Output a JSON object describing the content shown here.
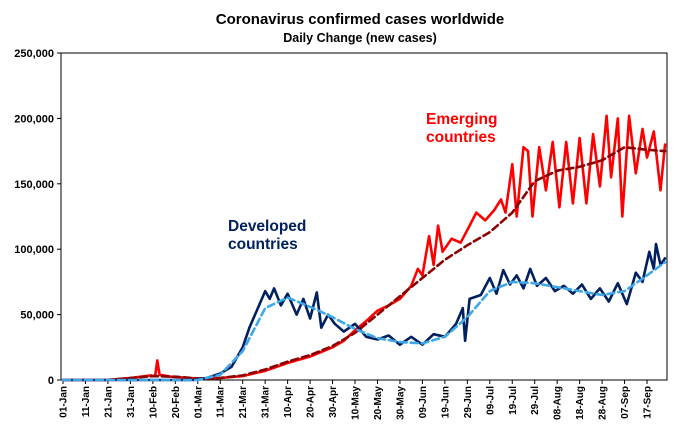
{
  "chart_data": {
    "type": "line",
    "title": "Coronavirus confirmed cases worldwide",
    "subtitle": "Daily Change (new cases)",
    "xlabel": "",
    "ylabel": "",
    "x_range": [
      "01-Jan",
      "25-Sep"
    ],
    "ylim": [
      0,
      250000
    ],
    "yticks": [
      0,
      50000,
      100000,
      150000,
      200000,
      250000
    ],
    "ytick_labels": [
      "0",
      "50,000",
      "100,000",
      "150,000",
      "200,000",
      "250,000"
    ],
    "x_tick_labels": [
      "01-Jan",
      "11-Jan",
      "21-Jan",
      "31-Jan",
      "10-Feb",
      "20-Feb",
      "01-Mar",
      "11-Mar",
      "21-Mar",
      "31-Mar",
      "10-Apr",
      "20-Apr",
      "30-Apr",
      "10-May",
      "20-May",
      "30-May",
      "09-Jun",
      "19-Jun",
      "29-Jun",
      "09-Jul",
      "19-Jul",
      "29-Jul",
      "08-Aug",
      "18-Aug",
      "28-Aug",
      "07-Sep",
      "17-Sep"
    ],
    "grid": false,
    "legend": "none",
    "annotations": [
      {
        "text_lines": [
          "Emerging",
          "countries"
        ],
        "color": "#ff0000"
      },
      {
        "text_lines": [
          "Developed",
          "countries"
        ],
        "color": "#002060"
      }
    ],
    "series": [
      {
        "color": "#ff0000",
        "style": "solid",
        "points": [
          [
            "01-Jan",
            0
          ],
          [
            "20-Jan",
            0
          ],
          [
            "31-Jan",
            1500
          ],
          [
            "09-Feb",
            3500
          ],
          [
            "11-Feb",
            3000
          ],
          [
            "12-Feb",
            15000
          ],
          [
            "13-Feb",
            4000
          ],
          [
            "18-Feb",
            2500
          ],
          [
            "01-Mar",
            1000
          ],
          [
            "11-Mar",
            1500
          ],
          [
            "21-Mar",
            3000
          ],
          [
            "31-Mar",
            7000
          ],
          [
            "10-Apr",
            13000
          ],
          [
            "20-Apr",
            18000
          ],
          [
            "30-Apr",
            25000
          ],
          [
            "05-May",
            30000
          ],
          [
            "10-May",
            38000
          ],
          [
            "15-May",
            45000
          ],
          [
            "20-May",
            53000
          ],
          [
            "25-May",
            57000
          ],
          [
            "30-May",
            62000
          ],
          [
            "04-Jun",
            72000
          ],
          [
            "07-Jun",
            85000
          ],
          [
            "09-Jun",
            80000
          ],
          [
            "12-Jun",
            110000
          ],
          [
            "14-Jun",
            88000
          ],
          [
            "16-Jun",
            118000
          ],
          [
            "18-Jun",
            98000
          ],
          [
            "22-Jun",
            108000
          ],
          [
            "26-Jun",
            105000
          ],
          [
            "30-Jun",
            118000
          ],
          [
            "03-Jul",
            128000
          ],
          [
            "07-Jul",
            122000
          ],
          [
            "11-Jul",
            130000
          ],
          [
            "14-Jul",
            138000
          ],
          [
            "16-Jul",
            128000
          ],
          [
            "19-Jul",
            165000
          ],
          [
            "21-Jul",
            125000
          ],
          [
            "24-Jul",
            178000
          ],
          [
            "26-Jul",
            175000
          ],
          [
            "28-Jul",
            125000
          ],
          [
            "31-Jul",
            178000
          ],
          [
            "03-Aug",
            145000
          ],
          [
            "06-Aug",
            182000
          ],
          [
            "09-Aug",
            132000
          ],
          [
            "12-Aug",
            182000
          ],
          [
            "15-Aug",
            135000
          ],
          [
            "18-Aug",
            185000
          ],
          [
            "21-Aug",
            135000
          ],
          [
            "24-Aug",
            188000
          ],
          [
            "27-Aug",
            148000
          ],
          [
            "30-Aug",
            202000
          ],
          [
            "01-Sep",
            155000
          ],
          [
            "04-Sep",
            200000
          ],
          [
            "06-Sep",
            125000
          ],
          [
            "09-Sep",
            202000
          ],
          [
            "12-Sep",
            158000
          ],
          [
            "15-Sep",
            192000
          ],
          [
            "17-Sep",
            170000
          ],
          [
            "20-Sep",
            190000
          ],
          [
            "23-Sep",
            145000
          ],
          [
            "25-Sep",
            180000
          ]
        ]
      },
      {
        "color": "#8b0000",
        "style": "dashed",
        "points": [
          [
            "01-Jan",
            0
          ],
          [
            "21-Jan",
            0
          ],
          [
            "31-Jan",
            1500
          ],
          [
            "10-Feb",
            3000
          ],
          [
            "20-Feb",
            2500
          ],
          [
            "01-Mar",
            1200
          ],
          [
            "11-Mar",
            1500
          ],
          [
            "21-Mar",
            3500
          ],
          [
            "31-Mar",
            8000
          ],
          [
            "10-Apr",
            14000
          ],
          [
            "20-Apr",
            19000
          ],
          [
            "30-Apr",
            26000
          ],
          [
            "10-May",
            36000
          ],
          [
            "20-May",
            50000
          ],
          [
            "30-May",
            64000
          ],
          [
            "09-Jun",
            78000
          ],
          [
            "19-Jun",
            92000
          ],
          [
            "29-Jun",
            103000
          ],
          [
            "09-Jul",
            113000
          ],
          [
            "19-Jul",
            128000
          ],
          [
            "29-Jul",
            152000
          ],
          [
            "08-Aug",
            160000
          ],
          [
            "18-Aug",
            163000
          ],
          [
            "28-Aug",
            168000
          ],
          [
            "07-Sep",
            178000
          ],
          [
            "17-Sep",
            176000
          ],
          [
            "25-Sep",
            175000
          ]
        ]
      },
      {
        "color": "#002060",
        "style": "solid",
        "points": [
          [
            "01-Jan",
            0
          ],
          [
            "28-Feb",
            0
          ],
          [
            "05-Mar",
            1500
          ],
          [
            "11-Mar",
            5000
          ],
          [
            "16-Mar",
            10000
          ],
          [
            "21-Mar",
            25000
          ],
          [
            "24-Mar",
            40000
          ],
          [
            "27-Mar",
            52000
          ],
          [
            "31-Mar",
            68000
          ],
          [
            "02-Apr",
            62000
          ],
          [
            "04-Apr",
            70000
          ],
          [
            "07-Apr",
            57000
          ],
          [
            "10-Apr",
            66000
          ],
          [
            "14-Apr",
            50000
          ],
          [
            "17-Apr",
            62000
          ],
          [
            "20-Apr",
            47000
          ],
          [
            "23-Apr",
            67000
          ],
          [
            "25-Apr",
            40000
          ],
          [
            "28-Apr",
            50000
          ],
          [
            "01-May",
            43000
          ],
          [
            "05-May",
            37000
          ],
          [
            "10-May",
            43000
          ],
          [
            "15-May",
            33000
          ],
          [
            "20-May",
            31000
          ],
          [
            "25-May",
            34000
          ],
          [
            "30-May",
            27000
          ],
          [
            "04-Jun",
            33000
          ],
          [
            "09-Jun",
            27000
          ],
          [
            "14-Jun",
            35000
          ],
          [
            "19-Jun",
            33000
          ],
          [
            "24-Jun",
            43000
          ],
          [
            "27-Jun",
            55000
          ],
          [
            "28-Jun",
            30000
          ],
          [
            "30-Jun",
            62000
          ],
          [
            "05-Jul",
            65000
          ],
          [
            "09-Jul",
            78000
          ],
          [
            "12-Jul",
            66000
          ],
          [
            "15-Jul",
            84000
          ],
          [
            "18-Jul",
            73000
          ],
          [
            "21-Jul",
            80000
          ],
          [
            "24-Jul",
            70000
          ],
          [
            "27-Jul",
            85000
          ],
          [
            "30-Jul",
            72000
          ],
          [
            "03-Aug",
            78000
          ],
          [
            "07-Aug",
            68000
          ],
          [
            "11-Aug",
            72000
          ],
          [
            "15-Aug",
            66000
          ],
          [
            "19-Aug",
            73000
          ],
          [
            "23-Aug",
            62000
          ],
          [
            "27-Aug",
            70000
          ],
          [
            "31-Aug",
            60000
          ],
          [
            "04-Sep",
            74000
          ],
          [
            "08-Sep",
            58000
          ],
          [
            "12-Sep",
            82000
          ],
          [
            "15-Sep",
            75000
          ],
          [
            "18-Sep",
            98000
          ],
          [
            "20-Sep",
            85000
          ],
          [
            "21-Sep",
            104000
          ],
          [
            "23-Sep",
            88000
          ],
          [
            "25-Sep",
            93000
          ]
        ]
      },
      {
        "color": "#3fa8e8",
        "style": "dashed",
        "points": [
          [
            "01-Jan",
            0
          ],
          [
            "01-Mar",
            0
          ],
          [
            "11-Mar",
            4000
          ],
          [
            "21-Mar",
            22000
          ],
          [
            "31-Mar",
            55000
          ],
          [
            "10-Apr",
            63000
          ],
          [
            "20-Apr",
            56000
          ],
          [
            "30-Apr",
            48000
          ],
          [
            "10-May",
            39000
          ],
          [
            "20-May",
            32000
          ],
          [
            "30-May",
            29000
          ],
          [
            "09-Jun",
            28000
          ],
          [
            "19-Jun",
            33000
          ],
          [
            "29-Jun",
            48000
          ],
          [
            "09-Jul",
            68000
          ],
          [
            "19-Jul",
            75000
          ],
          [
            "29-Jul",
            74000
          ],
          [
            "08-Aug",
            71000
          ],
          [
            "18-Aug",
            68000
          ],
          [
            "28-Aug",
            65000
          ],
          [
            "07-Sep",
            68000
          ],
          [
            "17-Sep",
            80000
          ],
          [
            "25-Sep",
            90000
          ]
        ]
      }
    ]
  }
}
